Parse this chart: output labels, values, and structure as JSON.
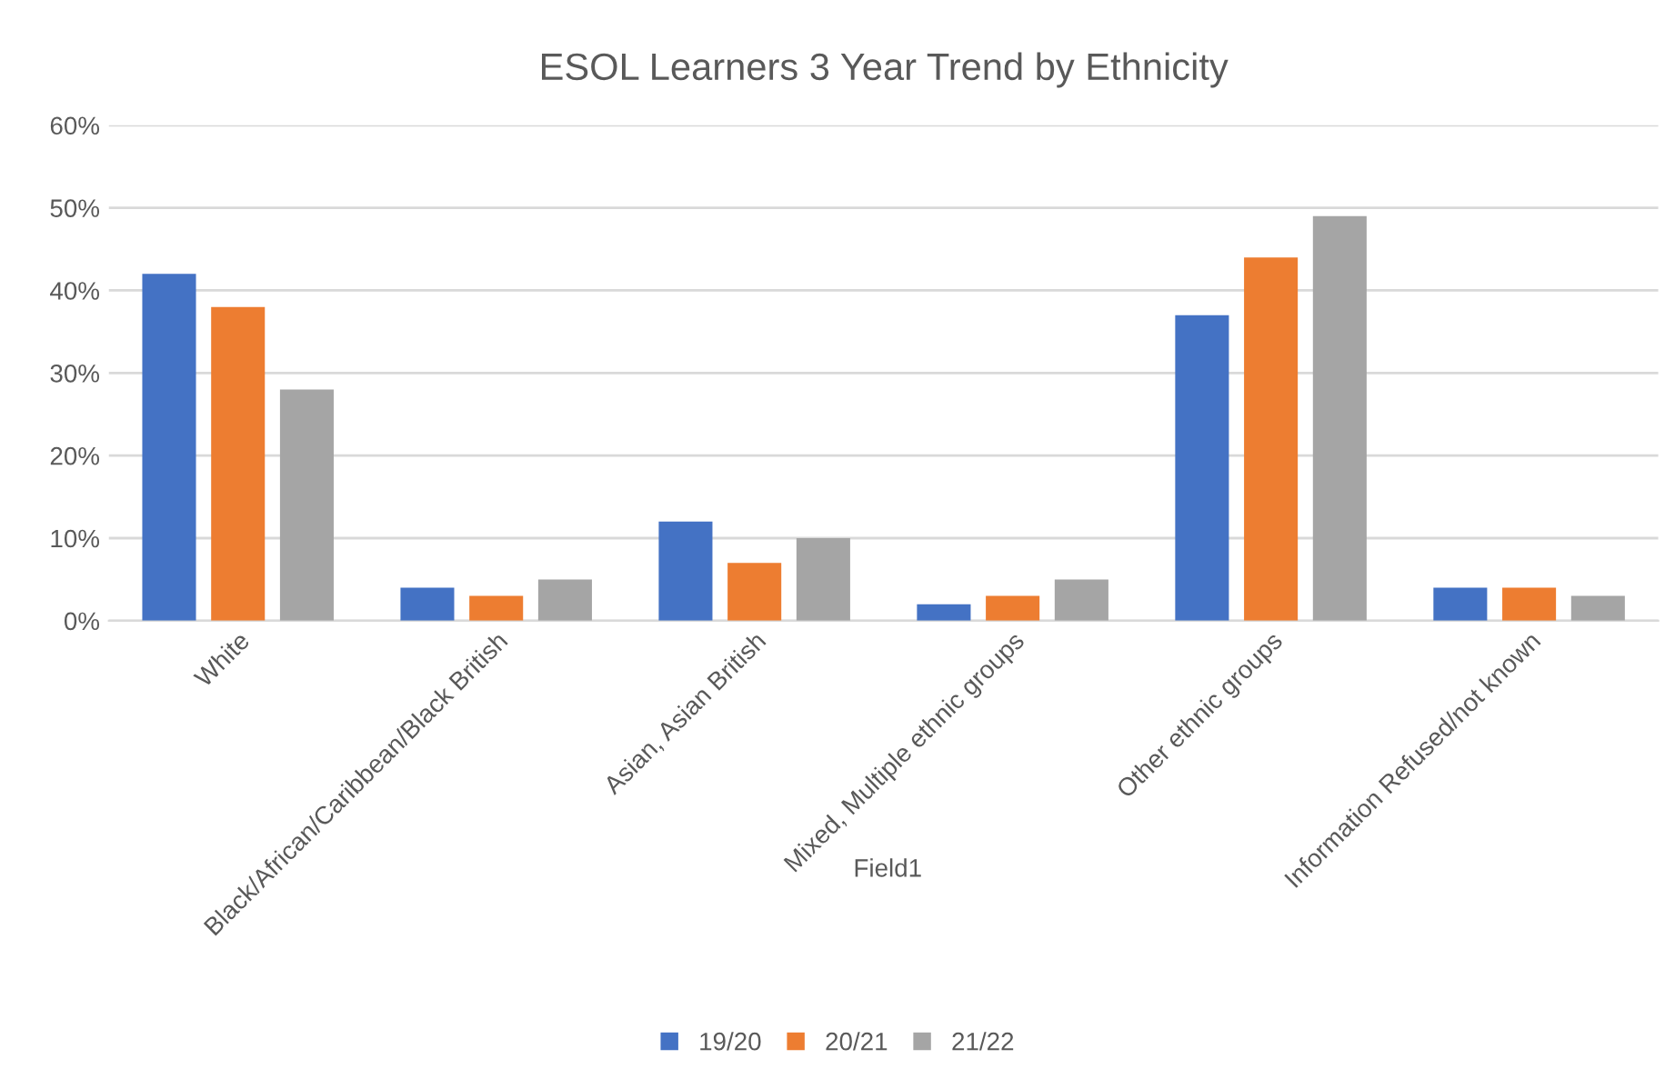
{
  "chart_data": {
    "type": "bar",
    "title": "ESOL Learners 3 Year Trend by Ethnicity",
    "xlabel": "Field1",
    "categories": [
      "White",
      "Black/African/Caribbean/Black British",
      "Asian, Asian British",
      "Mixed, Multiple ethnic groups",
      "Other ethnic groups",
      "Information Refused/not known"
    ],
    "series": [
      {
        "name": "19/20",
        "color": "#4472c4",
        "values": [
          42,
          4,
          12,
          2,
          37,
          4
        ]
      },
      {
        "name": "20/21",
        "color": "#ed7d31",
        "values": [
          38,
          3,
          7,
          3,
          44,
          4
        ]
      },
      {
        "name": "21/22",
        "color": "#a5a5a5",
        "values": [
          28,
          5,
          10,
          5,
          49,
          3
        ]
      }
    ],
    "ylim": [
      0,
      60
    ],
    "yticks": [
      {
        "value": 0,
        "label": "0%"
      },
      {
        "value": 10,
        "label": "10%"
      },
      {
        "value": 20,
        "label": "20%"
      },
      {
        "value": 30,
        "label": "30%"
      },
      {
        "value": 40,
        "label": "40%"
      },
      {
        "value": 50,
        "label": "50%"
      },
      {
        "value": 60,
        "label": "60%"
      }
    ],
    "grid": "y",
    "legend": "bottom"
  }
}
